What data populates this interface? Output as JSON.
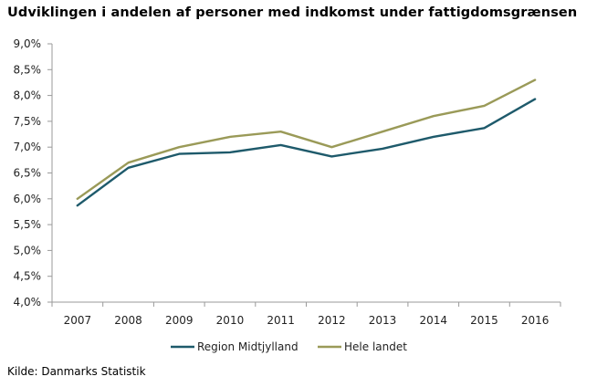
{
  "title": "Udviklingen i andelen af personer med indkomst under fattigdomsgrænsen",
  "source": "Kilde:  Danmarks Statistik",
  "colors": {
    "region": "#1e5a6b",
    "hele_landet": "#9a9a58",
    "axis": "#9a9a9a",
    "grid": "#c8c8c8"
  },
  "chart_data": {
    "type": "line",
    "x": [
      "2007",
      "2008",
      "2009",
      "2010",
      "2011",
      "2012",
      "2013",
      "2014",
      "2015",
      "2016"
    ],
    "series": [
      {
        "name": "Region Midtjylland",
        "values": [
          5.87,
          6.6,
          6.87,
          6.9,
          7.04,
          6.82,
          6.97,
          7.2,
          7.37,
          7.93
        ]
      },
      {
        "name": "Hele landet",
        "values": [
          6.0,
          6.7,
          7.0,
          7.2,
          7.3,
          7.0,
          7.3,
          7.6,
          7.8,
          8.3
        ]
      }
    ],
    "yticks": [
      "4,0%",
      "4,5%",
      "5,0%",
      "5,5%",
      "6,0%",
      "6,5%",
      "7,0%",
      "7,5%",
      "8,0%",
      "8,5%",
      "9,0%"
    ],
    "ylim": [
      4.0,
      9.0
    ],
    "grid": false,
    "legend": "bottom-center"
  }
}
